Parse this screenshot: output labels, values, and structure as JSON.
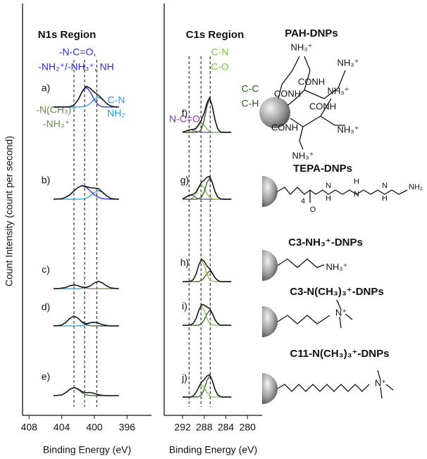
{
  "chart_data": [
    {
      "type": "line",
      "title": "N1s Region",
      "x_label": "Binding Energy (eV)",
      "y_label": "Count Intensity (count per second)",
      "xlim": [
        408.8,
        393
      ],
      "xticks": [
        408,
        404,
        400,
        396
      ],
      "ylim": [
        0,
        1
      ],
      "reference_lines": [
        402.5,
        401.2,
        399.7
      ],
      "annotations": [
        {
          "text": "-N-C=O,",
          "color": "#2b2bc8"
        },
        {
          "text": "-NH₂⁺/-NH₃⁺, NH",
          "color": "#2b2bc8"
        },
        {
          "text": "C-N",
          "color": "#2aa0d8"
        },
        {
          "text": "NH₂",
          "color": "#2aa0d8"
        },
        {
          "text": "-N(CH₃)⁺",
          "color": "#6b8a4a"
        },
        {
          "text": "-NH₃⁺",
          "color": "#6b8a4a"
        }
      ],
      "x": [
        405,
        404.5,
        404,
        403.5,
        403,
        402.5,
        402,
        401.5,
        401,
        400.5,
        400,
        399.5,
        399,
        398.5,
        398,
        397.5,
        397
      ],
      "panels": [
        {
          "label": "a)",
          "series": [
            {
              "color": "#111111",
              "values": [
                0,
                0,
                0,
                0,
                0.01,
                0.08,
                0.29,
                0.63,
                0.84,
                0.76,
                0.6,
                0.48,
                0.32,
                0.14,
                0.04,
                0.01,
                0
              ]
            },
            {
              "color": "#2b2bc8",
              "values": [
                0,
                0,
                0,
                0,
                0.01,
                0.08,
                0.29,
                0.62,
                0.8,
                0.62,
                0.29,
                0.08,
                0.01,
                0,
                0,
                0,
                0
              ]
            },
            {
              "color": "#2aa0d8",
              "values": [
                0,
                0,
                0,
                0,
                0,
                0,
                0,
                0.01,
                0.04,
                0.14,
                0.31,
                0.4,
                0.31,
                0.14,
                0.04,
                0.01,
                0
              ]
            }
          ]
        },
        {
          "label": "b)",
          "series": [
            {
              "color": "#111111",
              "values": [
                0,
                0.01,
                0.02,
                0.08,
                0.18,
                0.34,
                0.48,
                0.56,
                0.51,
                0.47,
                0.45,
                0.43,
                0.29,
                0.14,
                0.03,
                0.01,
                0
              ]
            },
            {
              "color": "#2b2bc8",
              "values": [
                0,
                0.01,
                0.02,
                0.08,
                0.18,
                0.34,
                0.48,
                0.55,
                0.48,
                0.34,
                0.18,
                0.08,
                0.02,
                0.01,
                0,
                0,
                0
              ]
            },
            {
              "color": "#2aa0d8",
              "values": [
                0,
                0,
                0,
                0,
                0,
                0,
                0,
                0.01,
                0.03,
                0.13,
                0.27,
                0.35,
                0.27,
                0.13,
                0.03,
                0.01,
                0
              ]
            }
          ]
        },
        {
          "label": "c)",
          "series": [
            {
              "color": "#111111",
              "values": [
                0,
                0,
                0.02,
                0.05,
                0.12,
                0.15,
                0.12,
                0.06,
                0.05,
                0.11,
                0.23,
                0.3,
                0.23,
                0.11,
                0.03,
                0.01,
                0
              ]
            },
            {
              "color": "#6b8a4a",
              "values": [
                0,
                0,
                0.02,
                0.05,
                0.12,
                0.15,
                0.12,
                0.05,
                0.02,
                0,
                0,
                0,
                0,
                0,
                0,
                0,
                0
              ]
            },
            {
              "color": "#2aa0d8",
              "values": [
                0,
                0,
                0,
                0,
                0,
                0,
                0,
                0.01,
                0.03,
                0.11,
                0.23,
                0.3,
                0.23,
                0.11,
                0.03,
                0.01,
                0
              ]
            }
          ]
        },
        {
          "label": "d)",
          "series": [
            {
              "color": "#111111",
              "values": [
                0,
                0.01,
                0.04,
                0.14,
                0.31,
                0.4,
                0.31,
                0.16,
                0.09,
                0.13,
                0.15,
                0.12,
                0.05,
                0.02,
                0,
                0,
                0
              ]
            },
            {
              "color": "#2d5a1e",
              "values": [
                0,
                0.01,
                0.04,
                0.14,
                0.31,
                0.4,
                0.31,
                0.14,
                0.04,
                0.01,
                0,
                0,
                0,
                0,
                0,
                0,
                0
              ]
            },
            {
              "color": "#2aa0d8",
              "values": [
                0,
                0,
                0,
                0,
                0,
                0,
                0,
                0.02,
                0.05,
                0.12,
                0.15,
                0.12,
                0.05,
                0.02,
                0,
                0,
                0
              ]
            }
          ]
        },
        {
          "label": "e)",
          "series": [
            {
              "color": "#111111",
              "values": [
                0,
                0.01,
                0.03,
                0.12,
                0.26,
                0.33,
                0.27,
                0.16,
                0.12,
                0.13,
                0.09,
                0.04,
                0.01,
                0,
                0,
                0,
                0
              ]
            },
            {
              "color": "#2d5a1e",
              "values": [
                0,
                0.01,
                0.03,
                0.12,
                0.26,
                0.33,
                0.26,
                0.12,
                0.03,
                0.01,
                0,
                0,
                0,
                0,
                0,
                0,
                0
              ]
            }
          ]
        }
      ]
    },
    {
      "type": "line",
      "title": "C1s Region",
      "x_label": "Binding Energy (eV)",
      "xlim": [
        295.4,
        277.3
      ],
      "xticks": [
        292,
        288,
        284,
        280
      ],
      "ylim": [
        0,
        1
      ],
      "reference_lines": [
        290.8,
        288.6,
        286.9
      ],
      "annotations": [
        {
          "text": "C-N",
          "color": "#7dc243"
        },
        {
          "text": "C-O",
          "color": "#7dc243"
        },
        {
          "text": "C-C",
          "color": "#2d5a1e"
        },
        {
          "text": "C-H",
          "color": "#2d5a1e"
        },
        {
          "text": "N-C=O",
          "color": "#7a3c9c"
        }
      ],
      "x": [
        292,
        291.5,
        291,
        290.5,
        290,
        289.5,
        289,
        288.5,
        288,
        287.5,
        287,
        286.5,
        286,
        285.5,
        285,
        284.5,
        284,
        283.5,
        283
      ],
      "panels": [
        {
          "label": "f)",
          "series": [
            {
              "color": "#111111",
              "values": [
                0.01,
                0.02,
                0.05,
                0.06,
                0.07,
                0.1,
                0.19,
                0.3,
                0.46,
                0.7,
                0.82,
                0.62,
                0.29,
                0.08,
                0.01,
                0,
                0,
                0,
                0
              ]
            },
            {
              "color": "#2d5a1e",
              "values": [
                0,
                0,
                0,
                0,
                0,
                0,
                0.01,
                0.08,
                0.29,
                0.62,
                0.8,
                0.62,
                0.29,
                0.08,
                0.01,
                0,
                0,
                0,
                0
              ]
            },
            {
              "color": "#7dc243",
              "values": [
                0,
                0,
                0,
                0,
                0.02,
                0.08,
                0.17,
                0.22,
                0.17,
                0.08,
                0.02,
                0,
                0,
                0,
                0,
                0,
                0,
                0,
                0
              ]
            },
            {
              "color": "#7a3c9c",
              "values": [
                0.01,
                0.02,
                0.05,
                0.06,
                0.05,
                0.02,
                0.01,
                0,
                0,
                0,
                0,
                0,
                0,
                0,
                0,
                0,
                0,
                0,
                0
              ]
            }
          ]
        },
        {
          "label": "g)",
          "series": [
            {
              "color": "#111111",
              "values": [
                0.01,
                0.04,
                0.08,
                0.1,
                0.12,
                0.17,
                0.29,
                0.4,
                0.45,
                0.52,
                0.54,
                0.4,
                0.18,
                0.05,
                0.01,
                0,
                0,
                0,
                0
              ]
            },
            {
              "color": "#2d5a1e",
              "values": [
                0,
                0,
                0,
                0,
                0,
                0,
                0.01,
                0.05,
                0.18,
                0.39,
                0.5,
                0.39,
                0.18,
                0.05,
                0.01,
                0,
                0,
                0,
                0
              ]
            },
            {
              "color": "#7dc243",
              "values": [
                0,
                0,
                0,
                0,
                0.04,
                0.13,
                0.27,
                0.35,
                0.27,
                0.13,
                0.04,
                0.01,
                0,
                0,
                0,
                0,
                0,
                0,
                0
              ]
            },
            {
              "color": "#7a3c9c",
              "values": [
                0.01,
                0.04,
                0.08,
                0.1,
                0.08,
                0.04,
                0.01,
                0,
                0,
                0,
                0,
                0,
                0,
                0,
                0,
                0,
                0,
                0,
                0
              ]
            }
          ]
        },
        {
          "label": "h)",
          "series": [
            {
              "color": "#111111",
              "values": [
                0,
                0,
                0,
                0.01,
                0.05,
                0.18,
                0.39,
                0.53,
                0.48,
                0.37,
                0.3,
                0.2,
                0.09,
                0.03,
                0,
                0,
                0,
                0,
                0
              ]
            },
            {
              "color": "#7dc243",
              "values": [
                0,
                0,
                0,
                0.01,
                0.05,
                0.18,
                0.39,
                0.5,
                0.39,
                0.18,
                0.05,
                0.01,
                0,
                0,
                0,
                0,
                0,
                0,
                0
              ]
            },
            {
              "color": "#2d5a1e",
              "values": [
                0,
                0,
                0,
                0,
                0,
                0,
                0,
                0.03,
                0.09,
                0.19,
                0.25,
                0.19,
                0.09,
                0.03,
                0,
                0,
                0,
                0,
                0
              ]
            }
          ]
        },
        {
          "label": "i)",
          "series": [
            {
              "color": "#111111",
              "values": [
                0,
                0,
                0,
                0.01,
                0.05,
                0.16,
                0.35,
                0.49,
                0.48,
                0.43,
                0.4,
                0.28,
                0.13,
                0.04,
                0,
                0,
                0,
                0,
                0
              ]
            },
            {
              "color": "#7dc243",
              "values": [
                0,
                0,
                0,
                0.01,
                0.05,
                0.16,
                0.35,
                0.45,
                0.35,
                0.16,
                0.05,
                0.01,
                0,
                0,
                0,
                0,
                0,
                0,
                0
              ]
            },
            {
              "color": "#2d5a1e",
              "values": [
                0,
                0,
                0,
                0,
                0,
                0,
                0,
                0.04,
                0.13,
                0.27,
                0.35,
                0.27,
                0.13,
                0.04,
                0,
                0,
                0,
                0,
                0
              ]
            }
          ]
        },
        {
          "label": "j)",
          "series": [
            {
              "color": "#111111",
              "values": [
                0,
                0,
                0,
                0,
                0.03,
                0.11,
                0.24,
                0.35,
                0.41,
                0.5,
                0.53,
                0.39,
                0.18,
                0.05,
                0.01,
                0,
                0,
                0,
                0
              ]
            },
            {
              "color": "#7dc243",
              "values": [
                0,
                0,
                0,
                0,
                0.03,
                0.11,
                0.23,
                0.3,
                0.23,
                0.11,
                0.03,
                0,
                0,
                0,
                0,
                0,
                0,
                0,
                0
              ]
            },
            {
              "color": "#2d5a1e",
              "values": [
                0,
                0,
                0,
                0,
                0,
                0,
                0.01,
                0.05,
                0.18,
                0.39,
                0.5,
                0.39,
                0.18,
                0.05,
                0.01,
                0,
                0,
                0,
                0
              ]
            }
          ]
        }
      ]
    }
  ],
  "structures": [
    {
      "title": "PAH-DNPs",
      "labels": [
        "NH₃⁺",
        "NH₃⁺",
        "CONH",
        "CONH",
        "CONH",
        "NH₃⁺",
        "CONH",
        "NH₃⁺",
        "NH₃⁺"
      ]
    },
    {
      "title": "TEPA-DNPs",
      "labels": [
        "4",
        "O",
        "N",
        "H",
        "H",
        "N",
        "N",
        "H",
        "NH₂"
      ]
    },
    {
      "title": "C3-NH₃⁺-DNPs",
      "labels": [
        "NH₃⁺"
      ]
    },
    {
      "title": "C3-N(CH₃)₃⁺-DNPs",
      "labels": [
        "N⁺"
      ]
    },
    {
      "title": "C11-N(CH₃)₃⁺-DNPs",
      "labels": [
        "N⁺"
      ]
    }
  ]
}
